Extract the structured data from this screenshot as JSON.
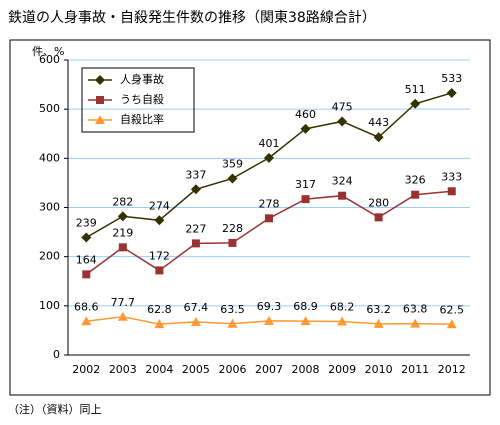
{
  "chart_data": {
    "type": "line",
    "title": "鉄道の人身事故・自殺発生件数の推移（関東38路線合計）",
    "y_label": "件、%",
    "note": "（注）（資料）同上",
    "categories": [
      "2002",
      "2003",
      "2004",
      "2005",
      "2006",
      "2007",
      "2008",
      "2009",
      "2010",
      "2011",
      "2012"
    ],
    "series": [
      {
        "name": "人身事故",
        "color": "#333300",
        "marker": "diamond",
        "values": [
          239,
          282,
          274,
          337,
          359,
          401,
          460,
          475,
          443,
          511,
          533
        ]
      },
      {
        "name": "うち自殺",
        "color": "#993333",
        "marker": "square",
        "values": [
          164,
          219,
          172,
          227,
          228,
          278,
          317,
          324,
          280,
          326,
          333
        ]
      },
      {
        "name": "自殺比率",
        "color": "#ff9933",
        "marker": "triangle",
        "values": [
          68.6,
          77.7,
          62.8,
          67.4,
          63.5,
          69.3,
          68.9,
          68.2,
          63.2,
          63.8,
          62.5
        ]
      }
    ],
    "ylim": [
      0,
      600
    ],
    "yticks": [
      0,
      100,
      200,
      300,
      400,
      500,
      600
    ],
    "grid": true,
    "legend": "top-left"
  }
}
